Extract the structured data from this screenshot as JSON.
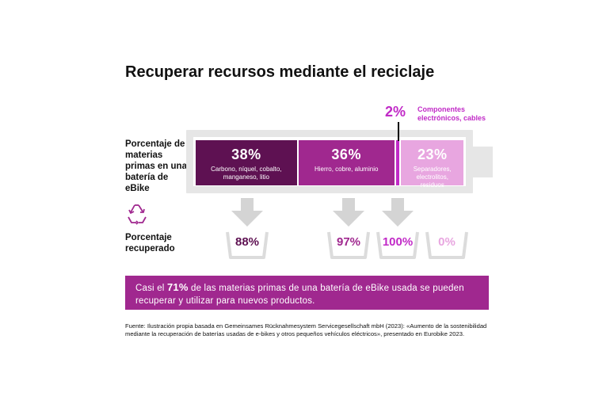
{
  "title": "Recuperar recursos mediante el reciclaje",
  "labels": {
    "battery": "Porcentaje de materias primas en una batería de eBike",
    "recovered": "Porcentaje recuperado"
  },
  "callout": {
    "percent": "2%",
    "text_line1": "Componentes",
    "text_line2": "electrónicos, cables"
  },
  "banner": {
    "before": "Casi el ",
    "highlight": "71%",
    "after": " de las materias primas de una batería de eBike usada se pueden recuperar y utilizar para nuevos productos."
  },
  "source": "Fuente: Ilustración propia basada en Gemeinsames Rücknahmesystem Servicegesellschaft mbH (2023): «Aumento de la sostenibilidad mediante la recuperación de baterías usadas de e-bikes y otros pequeños vehículos eléctricos», presentado en Eurobike 2023.",
  "colors": {
    "dark_purple": "#5e1152",
    "mid_purple": "#a0288f",
    "electronics": "#c12ac7",
    "light_purple": "#e8a6e0",
    "banner": "#a0288f",
    "battery_shell": "#e6e6e6"
  },
  "chart_data": {
    "type": "bar",
    "stacked": true,
    "categories": [
      "Carbono, níquel, cobalto, manganeso, litio",
      "Hierro, cobre, aluminio",
      "Componentes electrónicos, cables",
      "Separadores, electrolitos, residuos"
    ],
    "series": [
      {
        "name": "Porcentaje de materias primas en una batería de eBike",
        "values": [
          38,
          36,
          2,
          23
        ]
      },
      {
        "name": "Porcentaje recuperado",
        "values": [
          88,
          97,
          100,
          0
        ]
      }
    ],
    "segment_labels": [
      "38%",
      "36%",
      "2%",
      "23%"
    ],
    "recovered_labels": [
      "88%",
      "97%",
      "100%",
      "0%"
    ],
    "summary_value": 71,
    "unit": "%"
  }
}
